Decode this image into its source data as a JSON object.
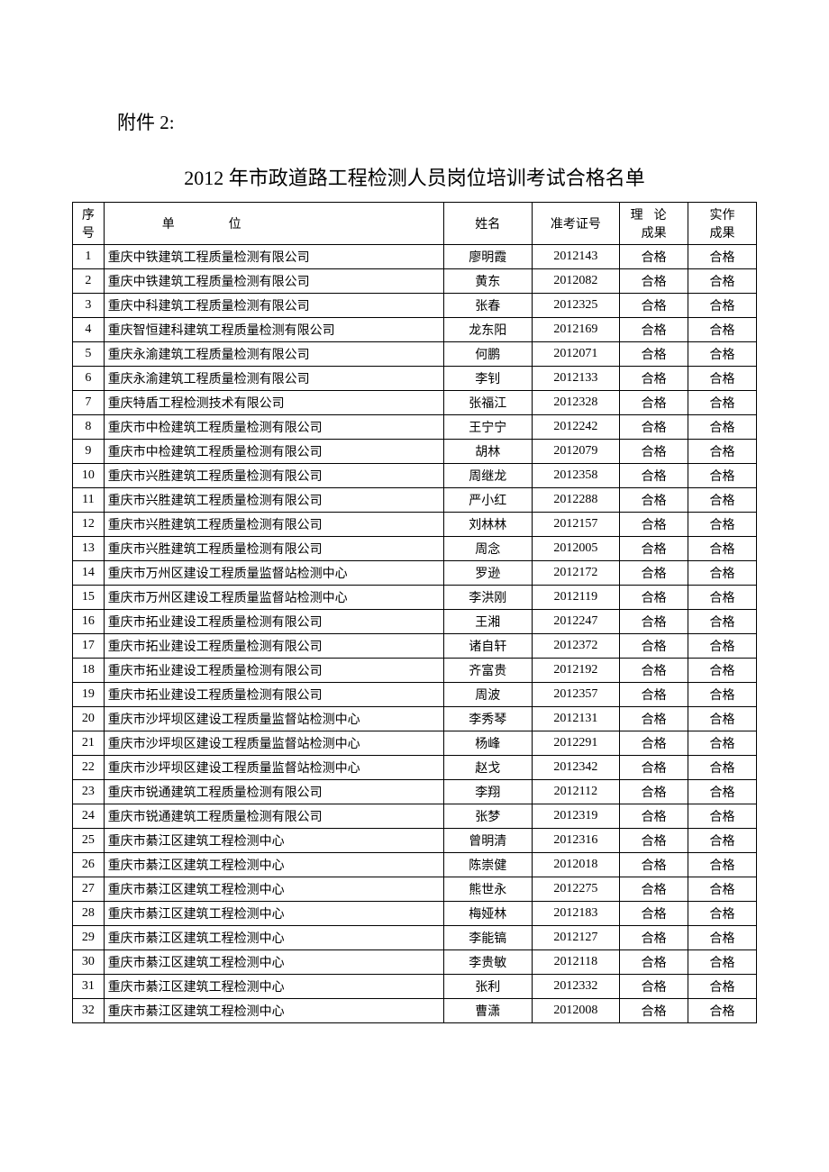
{
  "attachment_label": "附件 2:",
  "title": "2012 年市政道路工程检测人员岗位培训考试合格名单",
  "table": {
    "headers": {
      "seq": "序号",
      "unit": "单位",
      "name": "姓名",
      "examno": "准考证号",
      "theory_line1": "理论",
      "theory_line2": "成果",
      "practice_line1": "实作",
      "practice_line2": "成果"
    },
    "rows": [
      {
        "seq": "1",
        "unit": "重庆中铁建筑工程质量检测有限公司",
        "name": "廖明霞",
        "examno": "2012143",
        "theory": "合格",
        "practice": "合格"
      },
      {
        "seq": "2",
        "unit": "重庆中铁建筑工程质量检测有限公司",
        "name": "黄东",
        "examno": "2012082",
        "theory": "合格",
        "practice": "合格"
      },
      {
        "seq": "3",
        "unit": "重庆中科建筑工程质量检测有限公司",
        "name": "张春",
        "examno": "2012325",
        "theory": "合格",
        "practice": "合格"
      },
      {
        "seq": "4",
        "unit": "重庆智恒建科建筑工程质量检测有限公司",
        "name": "龙东阳",
        "examno": "2012169",
        "theory": "合格",
        "practice": "合格"
      },
      {
        "seq": "5",
        "unit": "重庆永渝建筑工程质量检测有限公司",
        "name": "何鹏",
        "examno": "2012071",
        "theory": "合格",
        "practice": "合格"
      },
      {
        "seq": "6",
        "unit": "重庆永渝建筑工程质量检测有限公司",
        "name": "李钊",
        "examno": "2012133",
        "theory": "合格",
        "practice": "合格"
      },
      {
        "seq": "7",
        "unit": "重庆特盾工程检测技术有限公司",
        "name": "张福江",
        "examno": "2012328",
        "theory": "合格",
        "practice": "合格"
      },
      {
        "seq": "8",
        "unit": "重庆市中检建筑工程质量检测有限公司",
        "name": "王宁宁",
        "examno": "2012242",
        "theory": "合格",
        "practice": "合格"
      },
      {
        "seq": "9",
        "unit": "重庆市中检建筑工程质量检测有限公司",
        "name": "胡林",
        "examno": "2012079",
        "theory": "合格",
        "practice": "合格"
      },
      {
        "seq": "10",
        "unit": "重庆市兴胜建筑工程质量检测有限公司",
        "name": "周继龙",
        "examno": "2012358",
        "theory": "合格",
        "practice": "合格"
      },
      {
        "seq": "11",
        "unit": "重庆市兴胜建筑工程质量检测有限公司",
        "name": "严小红",
        "examno": "2012288",
        "theory": "合格",
        "practice": "合格"
      },
      {
        "seq": "12",
        "unit": "重庆市兴胜建筑工程质量检测有限公司",
        "name": "刘林林",
        "examno": "2012157",
        "theory": "合格",
        "practice": "合格"
      },
      {
        "seq": "13",
        "unit": "重庆市兴胜建筑工程质量检测有限公司",
        "name": "周念",
        "examno": "2012005",
        "theory": "合格",
        "practice": "合格"
      },
      {
        "seq": "14",
        "unit": "重庆市万州区建设工程质量监督站检测中心",
        "name": "罗逊",
        "examno": "2012172",
        "theory": "合格",
        "practice": "合格"
      },
      {
        "seq": "15",
        "unit": "重庆市万州区建设工程质量监督站检测中心",
        "name": "李洪刚",
        "examno": "2012119",
        "theory": "合格",
        "practice": "合格"
      },
      {
        "seq": "16",
        "unit": "重庆市拓业建设工程质量检测有限公司",
        "name": "王湘",
        "examno": "2012247",
        "theory": "合格",
        "practice": "合格"
      },
      {
        "seq": "17",
        "unit": "重庆市拓业建设工程质量检测有限公司",
        "name": "诸自轩",
        "examno": "2012372",
        "theory": "合格",
        "practice": "合格"
      },
      {
        "seq": "18",
        "unit": "重庆市拓业建设工程质量检测有限公司",
        "name": "齐富贵",
        "examno": "2012192",
        "theory": "合格",
        "practice": "合格"
      },
      {
        "seq": "19",
        "unit": "重庆市拓业建设工程质量检测有限公司",
        "name": "周波",
        "examno": "2012357",
        "theory": "合格",
        "practice": "合格"
      },
      {
        "seq": "20",
        "unit": "重庆市沙坪坝区建设工程质量监督站检测中心",
        "name": "李秀琴",
        "examno": "2012131",
        "theory": "合格",
        "practice": "合格"
      },
      {
        "seq": "21",
        "unit": "重庆市沙坪坝区建设工程质量监督站检测中心",
        "name": "杨峰",
        "examno": "2012291",
        "theory": "合格",
        "practice": "合格"
      },
      {
        "seq": "22",
        "unit": "重庆市沙坪坝区建设工程质量监督站检测中心",
        "name": "赵戈",
        "examno": "2012342",
        "theory": "合格",
        "practice": "合格"
      },
      {
        "seq": "23",
        "unit": "重庆市锐通建筑工程质量检测有限公司",
        "name": "李翔",
        "examno": "2012112",
        "theory": "合格",
        "practice": "合格"
      },
      {
        "seq": "24",
        "unit": "重庆市锐通建筑工程质量检测有限公司",
        "name": "张梦",
        "examno": "2012319",
        "theory": "合格",
        "practice": "合格"
      },
      {
        "seq": "25",
        "unit": "重庆市綦江区建筑工程检测中心",
        "name": "曾明清",
        "examno": "2012316",
        "theory": "合格",
        "practice": "合格"
      },
      {
        "seq": "26",
        "unit": "重庆市綦江区建筑工程检测中心",
        "name": "陈崇健",
        "examno": "2012018",
        "theory": "合格",
        "practice": "合格"
      },
      {
        "seq": "27",
        "unit": "重庆市綦江区建筑工程检测中心",
        "name": "熊世永",
        "examno": "2012275",
        "theory": "合格",
        "practice": "合格"
      },
      {
        "seq": "28",
        "unit": "重庆市綦江区建筑工程检测中心",
        "name": "梅娅林",
        "examno": "2012183",
        "theory": "合格",
        "practice": "合格"
      },
      {
        "seq": "29",
        "unit": "重庆市綦江区建筑工程检测中心",
        "name": "李能镐",
        "examno": "2012127",
        "theory": "合格",
        "practice": "合格"
      },
      {
        "seq": "30",
        "unit": "重庆市綦江区建筑工程检测中心",
        "name": "李贵敏",
        "examno": "2012118",
        "theory": "合格",
        "practice": "合格"
      },
      {
        "seq": "31",
        "unit": "重庆市綦江区建筑工程检测中心",
        "name": "张利",
        "examno": "2012332",
        "theory": "合格",
        "practice": "合格"
      },
      {
        "seq": "32",
        "unit": "重庆市綦江区建筑工程检测中心",
        "name": "曹潇",
        "examno": "2012008",
        "theory": "合格",
        "practice": "合格"
      }
    ]
  },
  "styling": {
    "font_family": "SimSun",
    "title_fontsize": 22,
    "attachment_fontsize": 21,
    "cell_fontsize": 14,
    "border_color": "#000000",
    "text_color": "#000000",
    "background_color": "#ffffff",
    "col_widths": {
      "seq": 32,
      "unit": 348,
      "name": 90,
      "examno": 90,
      "theory": 70,
      "practice": 70
    }
  }
}
